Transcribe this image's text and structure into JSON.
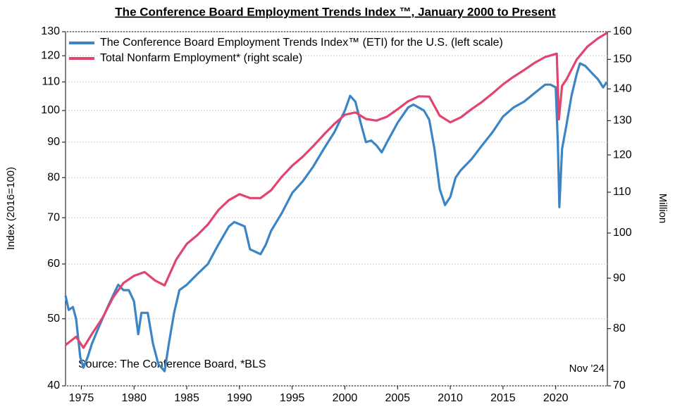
{
  "chart_data": {
    "type": "line",
    "title": "The Conference Board Employment Trends Index ™, January 2000 to Present",
    "ylabel": "Index (2016=100)",
    "y2label": "Million",
    "annotations": [
      "Source: The Conference Board, *BLS",
      "Nov '24"
    ],
    "xlim": [
      1973.5,
      2024.9
    ],
    "xticks": [
      1975,
      1980,
      1985,
      1990,
      1995,
      2000,
      2005,
      2010,
      2015,
      2020
    ],
    "ylim": [
      40,
      130
    ],
    "yticks": [
      40,
      50,
      60,
      70,
      80,
      90,
      100,
      110,
      120,
      130
    ],
    "ylog": true,
    "y2lim": [
      70,
      160
    ],
    "y2ticks": [
      70,
      80,
      90,
      100,
      110,
      120,
      130,
      140,
      150,
      160
    ],
    "y2log": true,
    "grid": true,
    "legend": "upper left",
    "series": [
      {
        "name": "The Conference Board Employment Trends Index™ (ETI) for the U.S. (left scale)",
        "color": "#3a85c6",
        "x": [
          1973.5,
          1973.8,
          1974.2,
          1974.5,
          1974.9,
          1975.2,
          1975.6,
          1976.0,
          1976.5,
          1977.0,
          1977.5,
          1978.0,
          1978.5,
          1979.0,
          1979.5,
          1980.0,
          1980.4,
          1980.7,
          1981.3,
          1981.8,
          1982.3,
          1982.9,
          1983.3,
          1983.8,
          1984.3,
          1985.0,
          1986.0,
          1987.0,
          1988.0,
          1989.0,
          1989.5,
          1990.0,
          1990.5,
          1991.0,
          1991.5,
          1992.0,
          1992.5,
          1993.0,
          1994.0,
          1995.0,
          1996.0,
          1997.0,
          1998.0,
          1999.0,
          2000.0,
          2000.5,
          2001.0,
          2001.5,
          2002.0,
          2002.5,
          2003.0,
          2003.5,
          2004.0,
          2005.0,
          2006.0,
          2006.5,
          2007.0,
          2007.5,
          2008.0,
          2008.5,
          2009.0,
          2009.5,
          2010.0,
          2010.5,
          2011.0,
          2012.0,
          2013.0,
          2014.0,
          2015.0,
          2016.0,
          2017.0,
          2018.0,
          2019.0,
          2019.5,
          2020.0,
          2020.2,
          2020.35,
          2020.6,
          2021.0,
          2021.5,
          2022.0,
          2022.3,
          2022.8,
          2023.5,
          2024.0,
          2024.5,
          2024.85
        ],
        "values": [
          54,
          51.5,
          52,
          50,
          44,
          42.5,
          44,
          46,
          48,
          50,
          52,
          54,
          56,
          55,
          55,
          53,
          47.5,
          51,
          51,
          46,
          43,
          42,
          46,
          51,
          55,
          56,
          58,
          60,
          64,
          68,
          69,
          68.5,
          68,
          63,
          62.5,
          62,
          64,
          67,
          71,
          76,
          79,
          83,
          88,
          93,
          100,
          105,
          103,
          96,
          90,
          90.5,
          89,
          87,
          90,
          96,
          101,
          102,
          101,
          100,
          97,
          88,
          77,
          73,
          75,
          80,
          82,
          85,
          89,
          93,
          98,
          101,
          103,
          106,
          109,
          109,
          108,
          90,
          72.5,
          88,
          95,
          105,
          113,
          117,
          116,
          113,
          111,
          108,
          110
        ]
      },
      {
        "name": "Total Nonfarm Employment* (right scale)",
        "color": "#e0446f",
        "axis": "y2",
        "x": [
          1973.5,
          1974.5,
          1975.2,
          1976,
          1977,
          1978,
          1979,
          1980,
          1981,
          1982,
          1982.9,
          1984,
          1985,
          1986,
          1987,
          1988,
          1989,
          1990,
          1991,
          1992,
          1993,
          1994,
          1995,
          1996,
          1997,
          1998,
          1999,
          2000,
          2001,
          2002,
          2003,
          2004,
          2005,
          2006,
          2007,
          2008,
          2009,
          2010,
          2011,
          2012,
          2013,
          2014,
          2015,
          2016,
          2017,
          2018,
          2019,
          2020.1,
          2020.3,
          2020.6,
          2021,
          2022,
          2023,
          2024,
          2024.85
        ],
        "values": [
          77,
          78.5,
          76.5,
          79,
          82,
          86,
          89,
          90.5,
          91.3,
          89.5,
          88.5,
          94,
          97.5,
          99.5,
          102,
          105.5,
          108,
          109.5,
          108.5,
          108.5,
          110.5,
          114,
          117,
          119.5,
          122.5,
          125.8,
          129,
          131.8,
          132.5,
          130.5,
          130,
          131.2,
          133.5,
          136,
          137.6,
          137.5,
          131.5,
          129.5,
          131,
          133.5,
          135.8,
          138.5,
          141.5,
          144,
          146.3,
          148.8,
          150.8,
          152,
          130.4,
          141,
          143,
          150,
          154.5,
          157.5,
          159.5
        ]
      }
    ]
  }
}
